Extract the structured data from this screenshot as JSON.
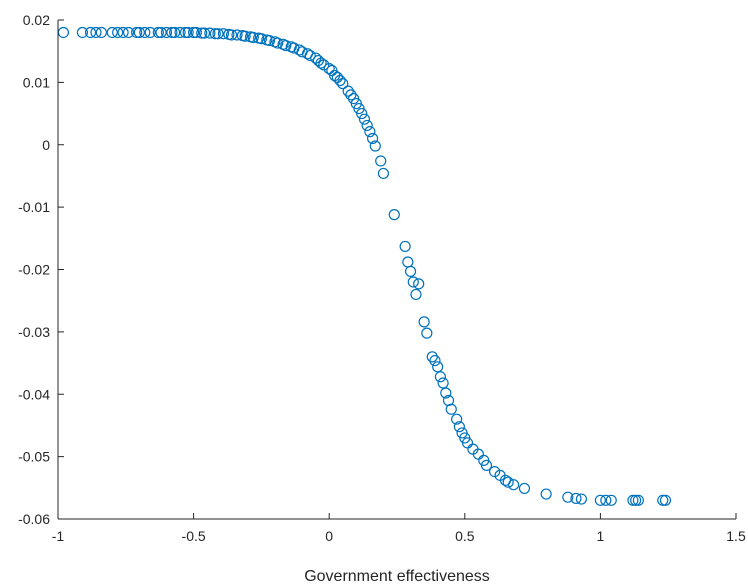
{
  "chart_data": {
    "type": "scatter",
    "title": "",
    "xlabel": "Government effectiveness",
    "ylabel": "",
    "xlim": [
      -1,
      1.5
    ],
    "ylim": [
      -0.06,
      0.02
    ],
    "xticks": [
      "-1",
      "-0.5",
      "0",
      "0.5",
      "1",
      "1.5"
    ],
    "yticks": [
      "0.02",
      "0.01",
      "0",
      "-0.01",
      "-0.02",
      "-0.03",
      "-0.04",
      "-0.05",
      "-0.06"
    ],
    "grid": false,
    "marker_color": "#0072BD",
    "x": [
      -0.98,
      -0.91,
      -0.88,
      -0.86,
      -0.84,
      -0.8,
      -0.78,
      -0.76,
      -0.74,
      -0.71,
      -0.7,
      -0.68,
      -0.66,
      -0.63,
      -0.62,
      -0.6,
      -0.58,
      -0.57,
      -0.55,
      -0.53,
      -0.52,
      -0.5,
      -0.49,
      -0.47,
      -0.46,
      -0.44,
      -0.42,
      -0.41,
      -0.39,
      -0.37,
      -0.36,
      -0.34,
      -0.32,
      -0.31,
      -0.29,
      -0.28,
      -0.26,
      -0.25,
      -0.23,
      -0.22,
      -0.2,
      -0.19,
      -0.17,
      -0.16,
      -0.14,
      -0.13,
      -0.11,
      -0.1,
      -0.08,
      -0.07,
      -0.05,
      -0.04,
      -0.03,
      -0.02,
      0.0,
      0.01,
      0.02,
      0.03,
      0.04,
      0.05,
      0.07,
      0.08,
      0.09,
      0.1,
      0.11,
      0.12,
      0.13,
      0.14,
      0.15,
      0.16,
      0.17,
      0.19,
      0.2,
      0.24,
      0.28,
      0.29,
      0.3,
      0.31,
      0.32,
      0.33,
      0.35,
      0.36,
      0.38,
      0.39,
      0.4,
      0.41,
      0.42,
      0.43,
      0.44,
      0.45,
      0.47,
      0.48,
      0.49,
      0.5,
      0.51,
      0.53,
      0.55,
      0.57,
      0.58,
      0.61,
      0.63,
      0.65,
      0.66,
      0.68,
      0.72,
      0.8,
      0.88,
      0.91,
      0.93,
      1.0,
      1.02,
      1.04,
      1.12,
      1.13,
      1.14,
      1.23,
      1.24
    ],
    "y": [
      0.018,
      0.018,
      0.018,
      0.018,
      0.018,
      0.018,
      0.018,
      0.018,
      0.018,
      0.018,
      0.018,
      0.018,
      0.018,
      0.018,
      0.018,
      0.018,
      0.018,
      0.018,
      0.018,
      0.018,
      0.018,
      0.018,
      0.018,
      0.0179,
      0.0179,
      0.0179,
      0.0178,
      0.0178,
      0.0178,
      0.0177,
      0.0176,
      0.0176,
      0.0175,
      0.0174,
      0.0173,
      0.0172,
      0.0171,
      0.017,
      0.0168,
      0.0167,
      0.0165,
      0.0163,
      0.0161,
      0.0159,
      0.0157,
      0.0155,
      0.0152,
      0.0149,
      0.0146,
      0.0143,
      0.0139,
      0.0135,
      0.0131,
      0.0128,
      0.0122,
      0.0119,
      0.0111,
      0.0108,
      0.0103,
      0.0098,
      0.0086,
      0.008,
      0.0074,
      0.0066,
      0.0058,
      0.005,
      0.0041,
      0.0031,
      0.0021,
      0.001,
      -0.0002,
      -0.0026,
      -0.0046,
      -0.0112,
      -0.0163,
      -0.0188,
      -0.0203,
      -0.022,
      -0.024,
      -0.0223,
      -0.0284,
      -0.0302,
      -0.034,
      -0.0346,
      -0.0356,
      -0.0372,
      -0.0382,
      -0.0398,
      -0.041,
      -0.0424,
      -0.044,
      -0.0452,
      -0.0462,
      -0.047,
      -0.0478,
      -0.0488,
      -0.0496,
      -0.0506,
      -0.0514,
      -0.0524,
      -0.053,
      -0.0538,
      -0.0541,
      -0.0545,
      -0.0551,
      -0.056,
      -0.0565,
      -0.0567,
      -0.0568,
      -0.057,
      -0.057,
      -0.057,
      -0.057,
      -0.057,
      -0.057,
      -0.057,
      -0.057
    ]
  }
}
